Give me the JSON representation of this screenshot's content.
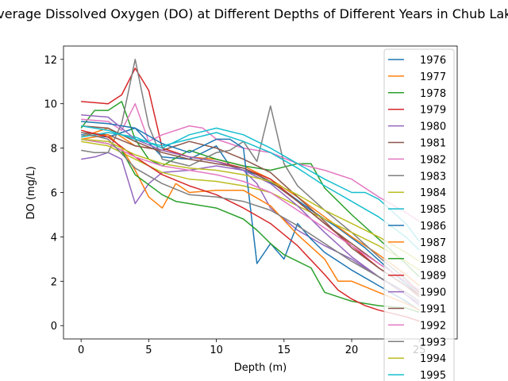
{
  "chart_data": {
    "type": "line",
    "title": "Average Dissolved Oxygen (DO) at Different Depths of Different Years in Chub Lake",
    "xlabel": "Depth (m)",
    "ylabel": "DO (mg/L)",
    "xlim": [
      -1.3,
      27.8
    ],
    "ylim": [
      -0.6,
      12.6
    ],
    "xticks": [
      0,
      5,
      10,
      15,
      20,
      25
    ],
    "yticks": [
      0,
      2,
      4,
      6,
      8,
      10,
      12
    ],
    "grid": false,
    "legend_position": "upper-right",
    "series": [
      {
        "name": "1976",
        "color": "#1f77b4",
        "x": [
          0,
          2,
          4,
          6,
          8,
          10,
          11,
          13,
          15,
          17,
          19,
          21,
          23,
          25
        ],
        "y": [
          8.6,
          8.5,
          8.9,
          7.6,
          7.5,
          8.1,
          7.2,
          6.8,
          6.1,
          5.2,
          4.4,
          3.5,
          2.4,
          1.4
        ]
      },
      {
        "name": "1977",
        "color": "#ff7f0e",
        "x": [
          0,
          2,
          4,
          6,
          8,
          10,
          12,
          14,
          16,
          18,
          20,
          22,
          24,
          25
        ],
        "y": [
          8.5,
          8.9,
          8.1,
          7.9,
          7.6,
          7.5,
          7.2,
          6.6,
          5.8,
          4.9,
          4.0,
          3.2,
          2.3,
          1.8
        ]
      },
      {
        "name": "1978",
        "color": "#2ca02c",
        "x": [
          0,
          1,
          2,
          3,
          4,
          5,
          6,
          8,
          10,
          12,
          14,
          16,
          17,
          18,
          20,
          22,
          24,
          25
        ],
        "y": [
          8.9,
          9.7,
          9.7,
          10.1,
          8.4,
          7.5,
          7.2,
          7.9,
          7.5,
          7.2,
          7.0,
          7.3,
          7.3,
          6.2,
          5.0,
          3.9,
          2.8,
          2.2
        ]
      },
      {
        "name": "1979",
        "color": "#d62728",
        "x": [
          0,
          2,
          3,
          4,
          5,
          6,
          8,
          10,
          12,
          14,
          16,
          18,
          20,
          22,
          24,
          25
        ],
        "y": [
          10.1,
          10.0,
          10.4,
          11.6,
          10.6,
          8.0,
          7.6,
          7.4,
          7.1,
          6.6,
          5.6,
          4.6,
          3.6,
          2.6,
          1.8,
          1.4
        ]
      },
      {
        "name": "1980",
        "color": "#9467bd",
        "x": [
          0,
          1,
          2,
          3,
          4,
          5,
          6,
          8,
          10,
          12,
          13,
          14,
          15,
          16,
          18,
          20,
          22,
          24,
          25
        ],
        "y": [
          7.5,
          7.6,
          7.8,
          7.5,
          5.5,
          6.4,
          6.9,
          7.0,
          7.2,
          7.0,
          6.4,
          5.3,
          4.8,
          4.3,
          3.6,
          3.0,
          2.2,
          1.4,
          0.9
        ]
      },
      {
        "name": "1981",
        "color": "#8c564b",
        "x": [
          0,
          2,
          4,
          6,
          8,
          10,
          12,
          14,
          16,
          18,
          20,
          22,
          24,
          25
        ],
        "y": [
          8.7,
          8.6,
          8.1,
          7.9,
          8.3,
          8.0,
          7.5,
          6.9,
          5.8,
          4.7,
          3.5,
          2.6,
          1.8,
          1.3
        ]
      },
      {
        "name": "1982",
        "color": "#e377c2",
        "x": [
          0,
          2,
          3,
          4,
          5,
          6,
          8,
          9,
          10,
          12,
          14,
          16,
          18,
          20,
          22,
          24,
          25
        ],
        "y": [
          9.3,
          9.2,
          8.8,
          10.0,
          8.3,
          8.6,
          9.0,
          8.9,
          8.4,
          8.0,
          7.8,
          7.3,
          7.0,
          6.6,
          5.8,
          5.1,
          4.7
        ]
      },
      {
        "name": "1983",
        "color": "#7f7f7f",
        "x": [
          0,
          1,
          2,
          3,
          4,
          5,
          6,
          8,
          10,
          11,
          12,
          13,
          14,
          15,
          16,
          18,
          20,
          22,
          24,
          25
        ],
        "y": [
          7.9,
          7.8,
          7.8,
          9.1,
          12.0,
          9.0,
          7.5,
          7.2,
          7.8,
          7.9,
          8.3,
          7.4,
          9.9,
          7.3,
          6.3,
          5.2,
          4.2,
          3.1,
          2.1,
          1.5
        ]
      },
      {
        "name": "1984",
        "color": "#bcbd22",
        "x": [
          0,
          2,
          4,
          6,
          8,
          10,
          12,
          14,
          16,
          18,
          20,
          22,
          24,
          25
        ],
        "y": [
          8.3,
          8.1,
          7.5,
          6.9,
          6.6,
          6.5,
          6.3,
          6.0,
          5.4,
          4.8,
          4.2,
          3.6,
          2.9,
          2.5
        ]
      },
      {
        "name": "1985",
        "color": "#17becf",
        "x": [
          0,
          2,
          4,
          6,
          8,
          10,
          12,
          14,
          16,
          18,
          20,
          21,
          22,
          24,
          25
        ],
        "y": [
          8.5,
          8.7,
          8.5,
          8.0,
          8.6,
          8.9,
          8.6,
          8.0,
          7.3,
          6.6,
          6.0,
          6.0,
          5.7,
          4.6,
          3.8
        ]
      },
      {
        "name": "1986",
        "color": "#1f77b4",
        "x": [
          0,
          2,
          4,
          6,
          8,
          10,
          11,
          12,
          13,
          14,
          15,
          16,
          17,
          18,
          20,
          22,
          24,
          25
        ],
        "y": [
          9.2,
          9.1,
          8.9,
          8.2,
          7.8,
          8.4,
          8.4,
          8.0,
          2.8,
          3.7,
          3.0,
          4.6,
          3.9,
          3.3,
          2.5,
          1.8,
          1.1,
          0.7
        ]
      },
      {
        "name": "1987",
        "color": "#ff7f0e",
        "x": [
          0,
          2,
          3,
          4,
          5,
          6,
          7,
          8,
          10,
          12,
          14,
          16,
          18,
          19,
          20,
          22,
          24,
          25
        ],
        "y": [
          8.4,
          8.6,
          8.0,
          7.0,
          5.8,
          5.3,
          6.4,
          6.0,
          6.1,
          6.1,
          5.4,
          4.1,
          3.0,
          2.0,
          2.0,
          1.5,
          1.0,
          0.7
        ]
      },
      {
        "name": "1988",
        "color": "#2ca02c",
        "x": [
          0,
          2,
          3,
          4,
          6,
          7,
          8,
          10,
          12,
          13,
          14,
          15,
          16,
          17,
          18,
          19,
          20,
          22,
          24,
          25
        ],
        "y": [
          8.4,
          8.2,
          7.9,
          6.8,
          5.9,
          5.6,
          5.5,
          5.3,
          4.8,
          4.3,
          3.7,
          3.2,
          2.9,
          2.6,
          1.5,
          1.3,
          1.1,
          0.9,
          0.8,
          0.6
        ]
      },
      {
        "name": "1989",
        "color": "#d62728",
        "x": [
          0,
          2,
          4,
          6,
          8,
          10,
          12,
          14,
          16,
          18,
          19,
          20,
          21,
          22,
          24,
          25
        ],
        "y": [
          8.8,
          8.5,
          7.6,
          6.8,
          6.3,
          5.9,
          5.3,
          4.6,
          3.6,
          2.3,
          1.6,
          1.2,
          0.9,
          0.7,
          0.4,
          0.2
        ]
      },
      {
        "name": "1990",
        "color": "#9467bd",
        "x": [
          0,
          2,
          4,
          6,
          8,
          10,
          12,
          14,
          16,
          18,
          20,
          22,
          24,
          25
        ],
        "y": [
          9.5,
          9.4,
          8.4,
          7.9,
          7.6,
          7.4,
          7.0,
          6.4,
          5.4,
          4.2,
          3.1,
          2.2,
          1.4,
          1.0
        ]
      },
      {
        "name": "1991",
        "color": "#8c564b",
        "x": [
          0,
          2,
          4,
          6,
          8,
          10,
          12,
          14,
          16,
          18,
          20,
          22,
          24,
          25
        ],
        "y": [
          9.0,
          8.9,
          8.3,
          7.8,
          7.5,
          7.3,
          7.1,
          6.5,
          5.6,
          4.6,
          3.7,
          2.8,
          2.0,
          1.5
        ]
      },
      {
        "name": "1992",
        "color": "#e377c2",
        "x": [
          0,
          2,
          4,
          6,
          8,
          10,
          12,
          14,
          16,
          18,
          20,
          22,
          24,
          25
        ],
        "y": [
          8.4,
          8.2,
          7.6,
          7.2,
          7.0,
          6.8,
          6.5,
          6.0,
          5.2,
          4.4,
          3.6,
          2.8,
          2.0,
          1.6
        ]
      },
      {
        "name": "1993",
        "color": "#7f7f7f",
        "x": [
          0,
          2,
          4,
          6,
          8,
          10,
          12,
          14,
          16,
          18,
          20,
          22,
          24,
          25
        ],
        "y": [
          8.7,
          8.4,
          7.1,
          6.4,
          5.9,
          5.8,
          5.6,
          5.2,
          4.5,
          3.7,
          2.9,
          2.2,
          1.5,
          1.1
        ]
      },
      {
        "name": "1994",
        "color": "#bcbd22",
        "x": [
          0,
          2,
          4,
          6,
          8,
          10,
          12,
          14,
          16,
          18,
          20,
          22,
          24,
          25
        ],
        "y": [
          8.4,
          8.3,
          7.7,
          7.3,
          7.1,
          7.0,
          6.8,
          6.5,
          5.9,
          5.2,
          4.6,
          4.0,
          3.3,
          2.9
        ]
      },
      {
        "name": "1995",
        "color": "#17becf",
        "x": [
          0,
          2,
          4,
          6,
          8,
          10,
          12,
          14,
          16,
          18,
          20,
          22,
          24,
          25
        ],
        "y": [
          9.0,
          8.8,
          8.4,
          8.1,
          8.4,
          8.7,
          8.3,
          7.8,
          7.1,
          6.3,
          5.6,
          4.9,
          4.0,
          3.4
        ]
      }
    ]
  }
}
